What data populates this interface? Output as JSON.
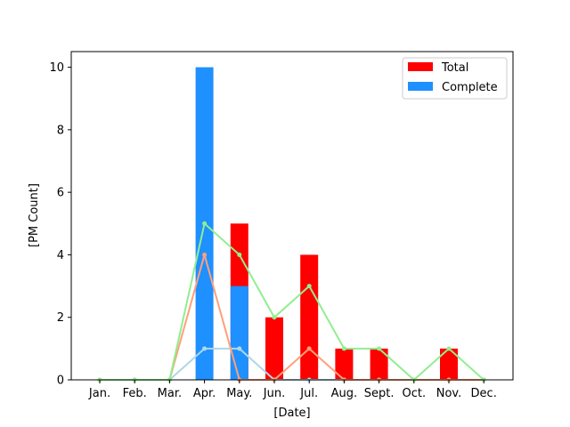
{
  "chart_data": {
    "type": "bar",
    "xlabel": "[Date]",
    "ylabel": "[PM Count]",
    "ylim": [
      0,
      10.5
    ],
    "yticks": [
      0,
      2,
      4,
      6,
      8,
      10
    ],
    "grid": false,
    "legend_position": "top-right",
    "categories": [
      "Jan.",
      "Feb.",
      "Mar.",
      "Apr.",
      "May.",
      "Jun.",
      "Jul.",
      "Aug.",
      "Sept.",
      "Oct.",
      "Nov.",
      "Dec."
    ],
    "bars": [
      {
        "name": "Total",
        "color": "#ff0000",
        "values": [
          0,
          0,
          0,
          0,
          5,
          2,
          4,
          1,
          1,
          0,
          1,
          0
        ]
      },
      {
        "name": "Complete",
        "color": "#1e90ff",
        "values": [
          0,
          0,
          0,
          10,
          3,
          0,
          0,
          0,
          0,
          0,
          0,
          0
        ]
      }
    ],
    "lines": [
      {
        "color": "#add8e6",
        "values": [
          0,
          0,
          0,
          1,
          1,
          0,
          0,
          0,
          0,
          0,
          0,
          0
        ]
      },
      {
        "color": "#ffa07a",
        "values": [
          0,
          0,
          0,
          4,
          0,
          0,
          1,
          0,
          0,
          0,
          0,
          0
        ]
      },
      {
        "color": "#90ee90",
        "values": [
          0,
          0,
          0,
          5,
          4,
          2,
          3,
          1,
          1,
          0,
          1,
          0
        ]
      }
    ]
  }
}
